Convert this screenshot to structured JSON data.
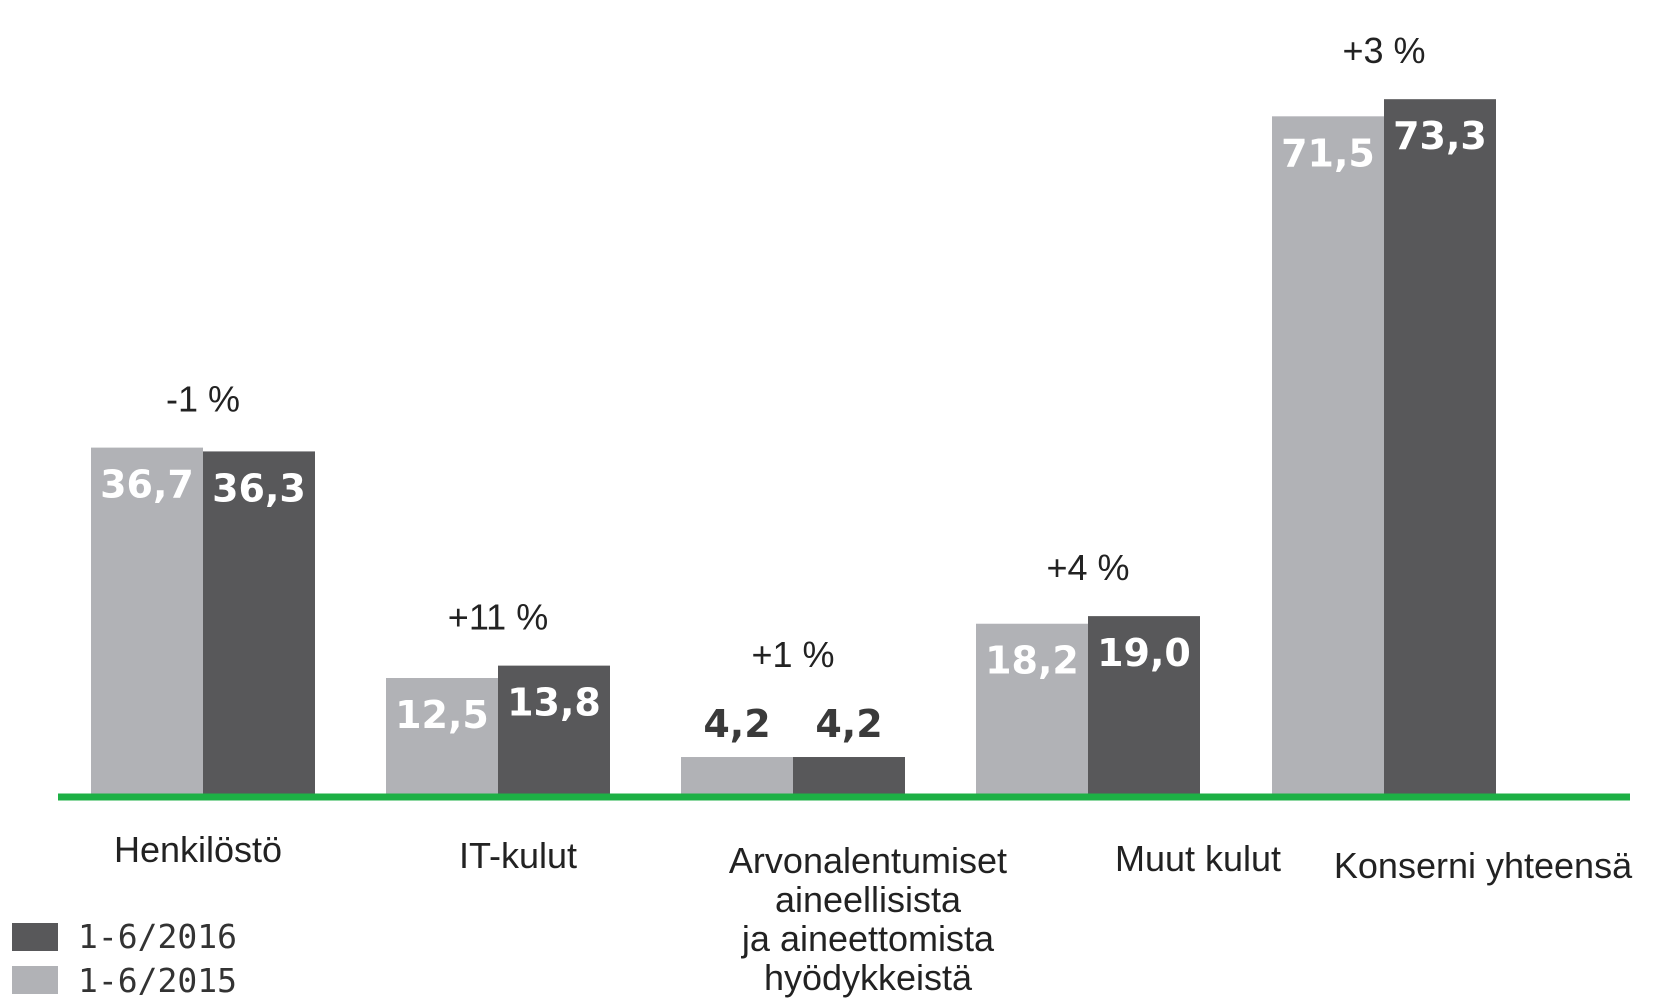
{
  "chart_data": {
    "type": "bar",
    "title": "",
    "xlabel": "",
    "ylabel": "",
    "ylim": [
      0,
      75
    ],
    "grid": false,
    "legend_position": "bottom-left",
    "categories": [
      "Henkilöstö",
      "IT-kulut",
      "Arvonalentumiset aineellisista ja aineettomista hyödykkeistä",
      "Muut kulut",
      "Konserni yhteensä"
    ],
    "category_lines": [
      [
        "Henkilöstö"
      ],
      [
        "IT-kulut"
      ],
      [
        "Arvonalentumiset",
        "aineellisista",
        "ja aineettomista",
        "hyödykkeistä"
      ],
      [
        "Muut kulut"
      ],
      [
        "Konserni yhteensä"
      ]
    ],
    "series": [
      {
        "name": "1-6/2015",
        "color": "#b1b2b6",
        "values": [
          36.7,
          12.5,
          4.2,
          18.2,
          71.5
        ],
        "value_labels": [
          "36,7",
          "12,5",
          "4,2",
          "18,2",
          "71,5"
        ]
      },
      {
        "name": "1-6/2016",
        "color": "#58585a",
        "values": [
          36.3,
          13.8,
          4.2,
          19.0,
          73.3
        ],
        "value_labels": [
          "36,3",
          "13,8",
          "4,2",
          "19,0",
          "73,3"
        ]
      }
    ],
    "changes": [
      "-1 %",
      "+11 %",
      "+1 %",
      "+4 %",
      "+3 %"
    ],
    "baseline_color": "#1db045"
  },
  "legend": [
    {
      "label": "1-6/2016",
      "color": "#58585a"
    },
    {
      "label": "1-6/2015",
      "color": "#b1b2b6"
    }
  ]
}
